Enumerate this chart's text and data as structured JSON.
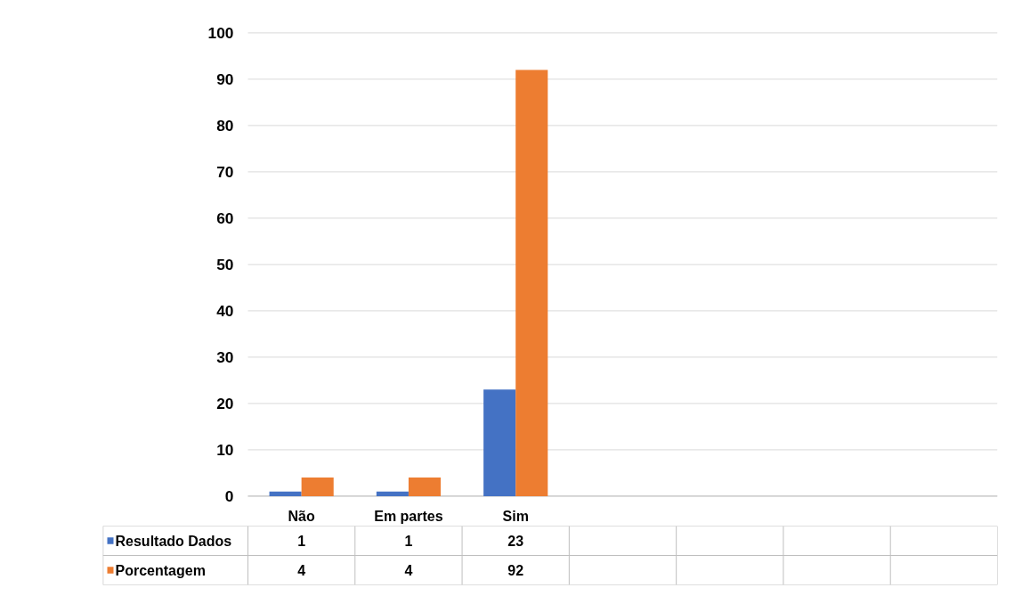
{
  "chart_data": {
    "type": "bar",
    "categories": [
      "Não",
      "Em partes",
      "Sim",
      null,
      null,
      null,
      null
    ],
    "series": [
      {
        "name": "Resultado Dados",
        "color": "#4472c4",
        "values": [
          1,
          1,
          23,
          null,
          null,
          null,
          null
        ]
      },
      {
        "name": "Porcentagem",
        "color": "#ed7d31",
        "values": [
          4,
          4,
          92,
          null,
          null,
          null,
          null
        ]
      }
    ],
    "ylim": [
      0,
      100
    ],
    "yticks": [
      0,
      10,
      20,
      30,
      40,
      50,
      60,
      70,
      80,
      90,
      100
    ],
    "grid": "y",
    "legend": "bottom",
    "data_labels": true
  }
}
